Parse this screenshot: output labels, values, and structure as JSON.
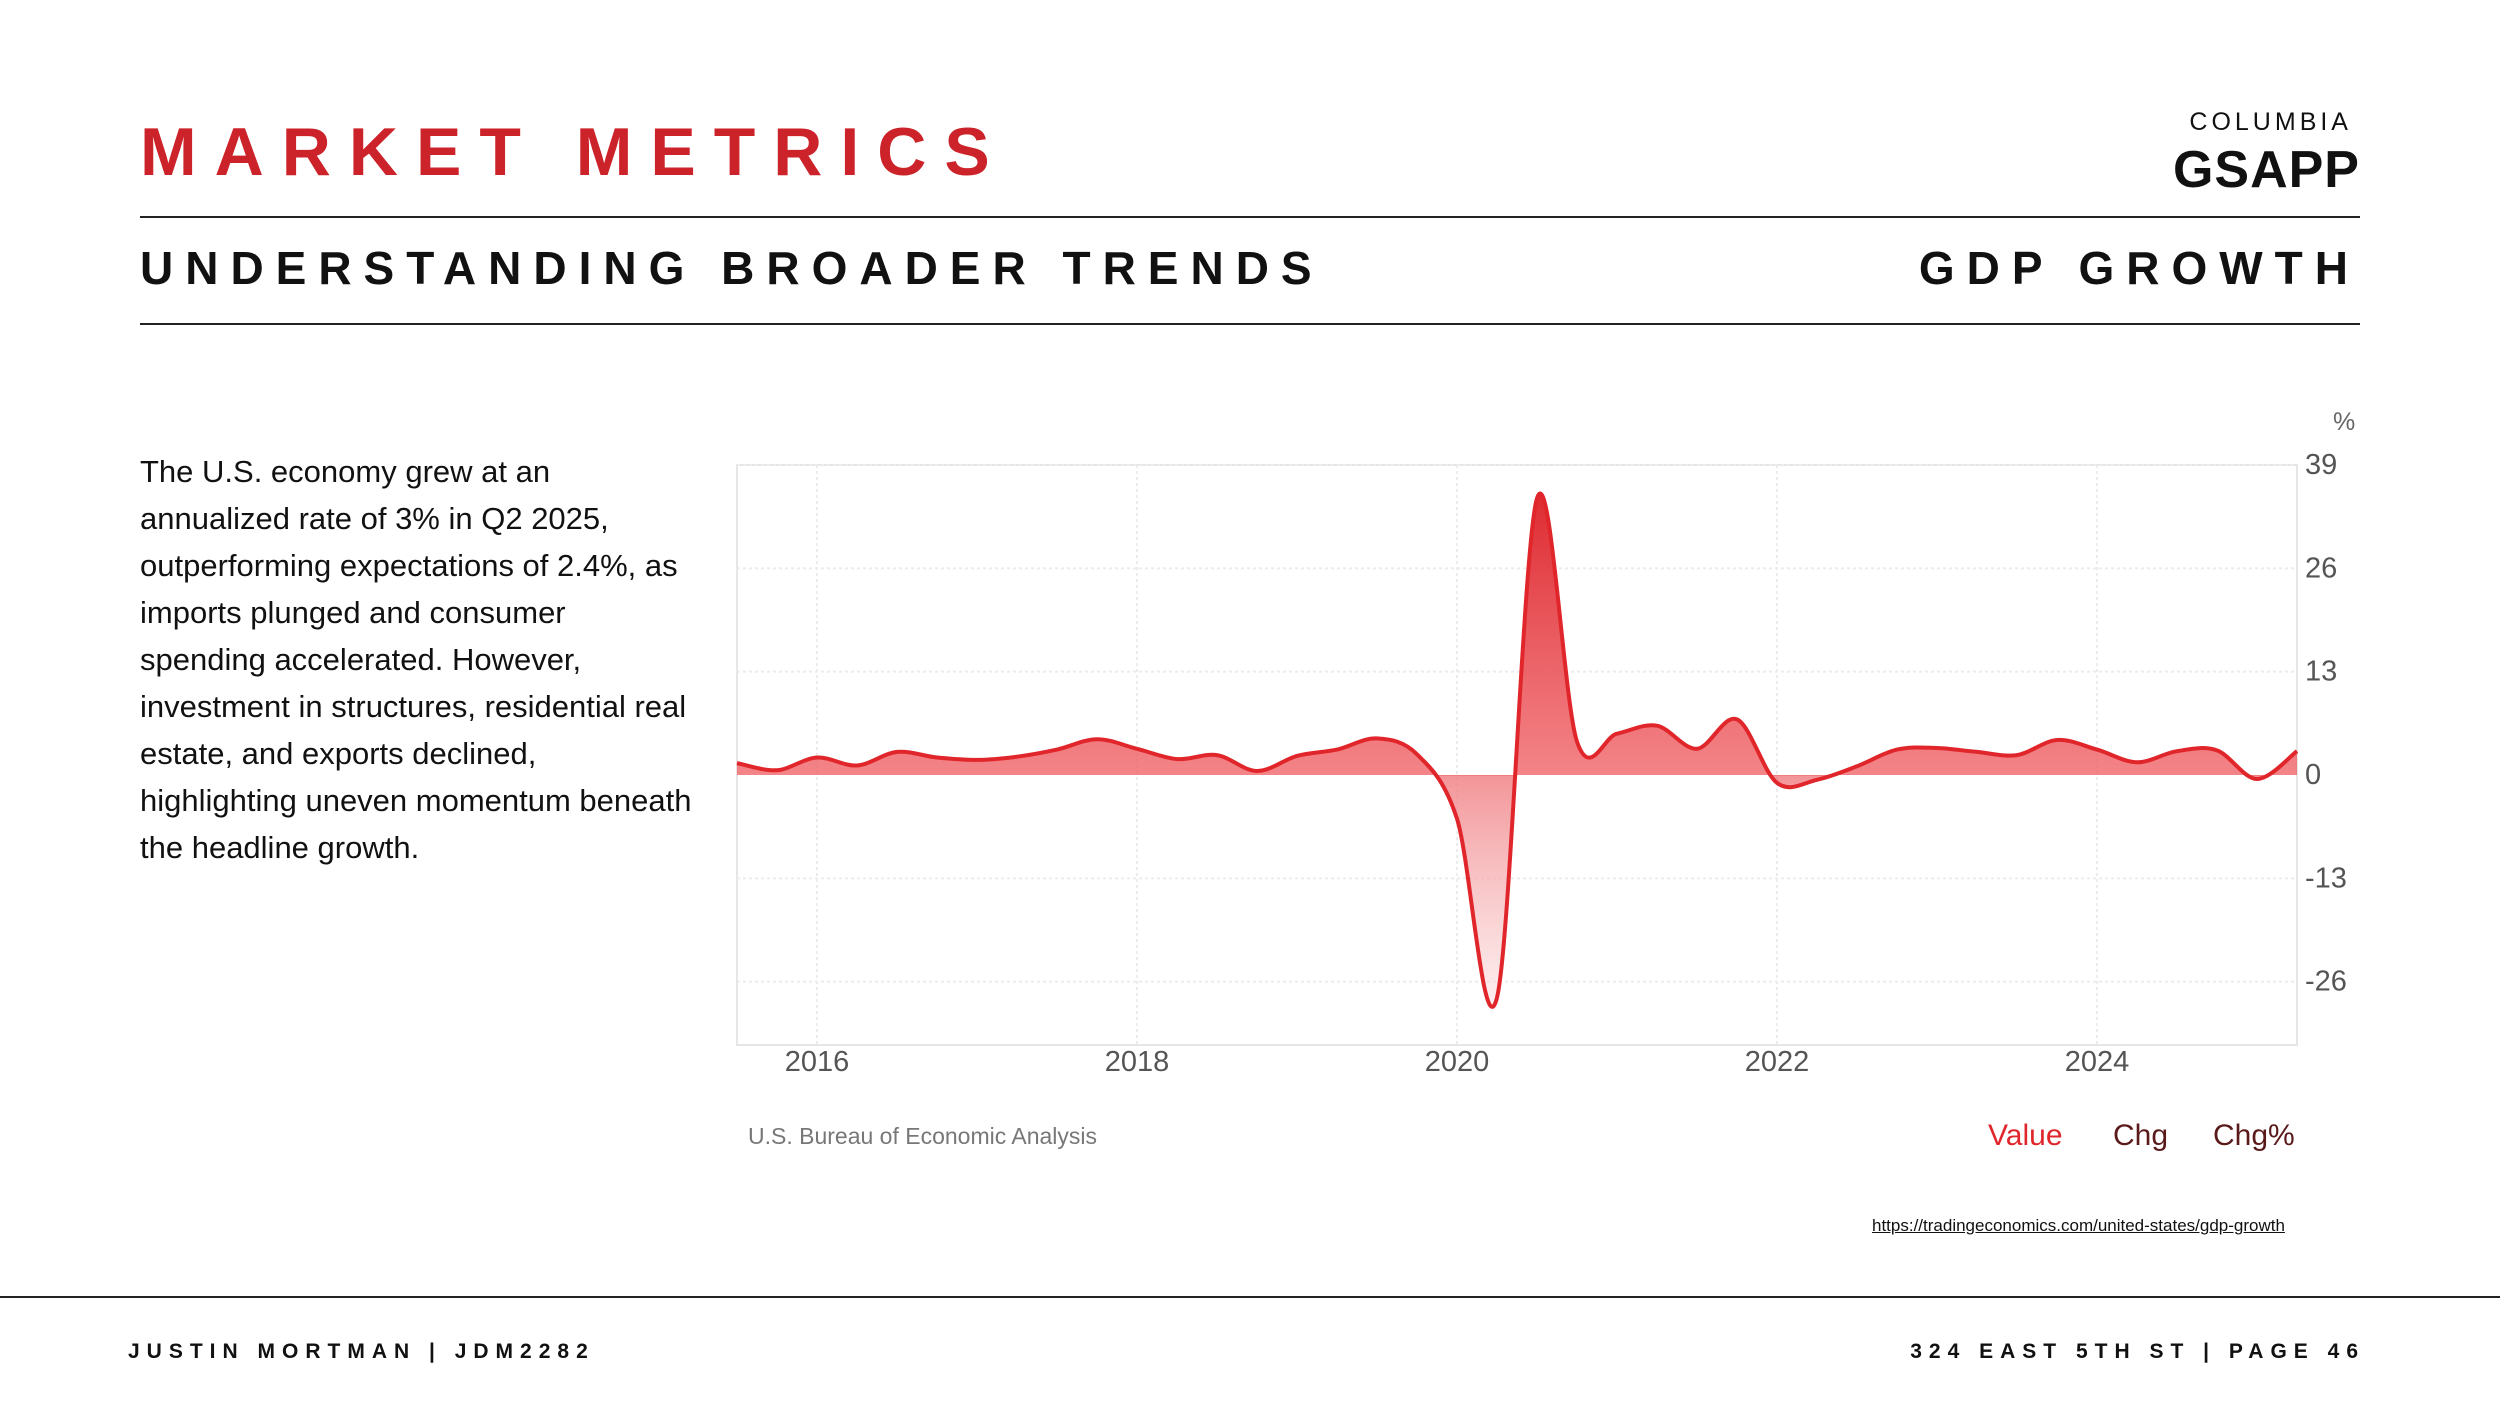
{
  "header": {
    "title": "MARKET METRICS",
    "subtitle_left": "UNDERSTANDING BROADER TRENDS",
    "subtitle_right": "GDP GROWTH",
    "logo_top": "COLUMBIA",
    "logo_main": "GSAPP"
  },
  "body": {
    "paragraph": "The U.S. economy grew at an annualized rate of 3% in Q2 2025, outperforming expectations of 2.4%, as imports plunged and consumer spending accelerated. However, investment in structures, residential real estate, and exports declined, highlighting uneven momentum beneath the headline growth."
  },
  "chart_data": {
    "type": "area",
    "title": "GDP GROWTH",
    "ylabel": "%",
    "ylim": [
      -34,
      39
    ],
    "yticks": [
      39,
      26,
      13,
      0,
      -13,
      -26
    ],
    "xlim": [
      2015.5,
      2025.25
    ],
    "xticks": [
      2016,
      2018,
      2020,
      2022,
      2024
    ],
    "source": "U.S. Bureau of Economic Analysis",
    "tabs": [
      "Value",
      "Chg",
      "Chg%"
    ],
    "active_tab": "Value",
    "series": [
      {
        "name": "Value",
        "x": [
          2015.5,
          2015.75,
          2016.0,
          2016.25,
          2016.5,
          2016.75,
          2017.0,
          2017.25,
          2017.5,
          2017.75,
          2018.0,
          2018.25,
          2018.5,
          2018.75,
          2019.0,
          2019.25,
          2019.5,
          2019.75,
          2020.0,
          2020.25,
          2020.5,
          2020.75,
          2021.0,
          2021.25,
          2021.5,
          2021.75,
          2022.0,
          2022.25,
          2022.5,
          2022.75,
          2023.0,
          2023.25,
          2023.5,
          2023.75,
          2024.0,
          2024.25,
          2024.5,
          2024.75,
          2025.0,
          2025.25
        ],
        "values": [
          1.5,
          0.6,
          2.2,
          1.2,
          2.9,
          2.2,
          1.9,
          2.3,
          3.2,
          4.5,
          3.3,
          2.0,
          2.5,
          0.5,
          2.4,
          3.2,
          4.6,
          2.6,
          -5.5,
          -28.0,
          34.8,
          4.2,
          5.2,
          6.2,
          3.3,
          7.0,
          -1.0,
          -0.6,
          1.1,
          3.2,
          3.4,
          2.9,
          2.5,
          4.4,
          3.2,
          1.6,
          3.0,
          3.1,
          -0.5,
          3.0
        ]
      }
    ],
    "color": "#e0262b"
  },
  "source_link": "https://tradingeconomics.com/united-states/gdp-growth ",
  "footer": {
    "left": "JUSTIN MORTMAN | JDM2282",
    "right": "324 EAST 5TH ST | PAGE 46"
  }
}
